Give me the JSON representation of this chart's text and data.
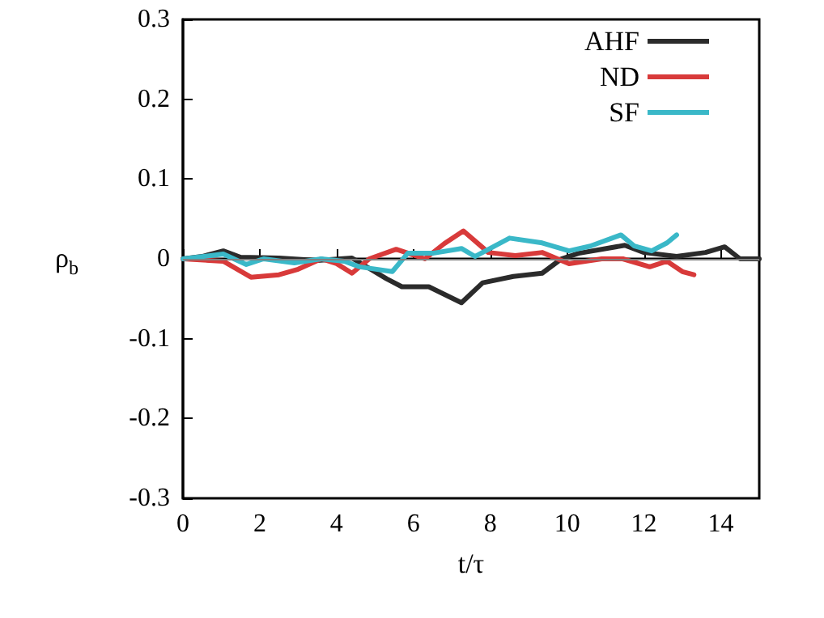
{
  "chart_data": {
    "type": "line",
    "xlabel": "t/τ",
    "ylabel": "ρ$_{b}$",
    "xlim": [
      0,
      15
    ],
    "xticks": [
      0,
      2,
      4,
      6,
      8,
      10,
      12,
      14
    ],
    "ylim": [
      -0.3,
      0.3
    ],
    "yticks": [
      -0.3,
      -0.2,
      -0.1,
      0,
      0.1,
      0.2,
      0.3
    ],
    "grid": false,
    "legend": "top right",
    "marker": "none",
    "line_style": "solid",
    "ref_lines": [
      {
        "axis": "y",
        "value": 0,
        "color": "#808080"
      }
    ],
    "series": [
      {
        "name": "AHF",
        "color": "#2b2b2b",
        "x": [
          0,
          0.5,
          1.05,
          1.5,
          2.5,
          3.5,
          4.4,
          5.3,
          5.7,
          6.4,
          7.25,
          7.8,
          8.6,
          9.35,
          9.85,
          10.3,
          11.5,
          12,
          12.85,
          13.6,
          14.1,
          14.5,
          15
        ],
        "values": [
          0,
          0.003,
          0.01,
          0.002,
          0.001,
          -0.002,
          0.001,
          -0.025,
          -0.035,
          -0.035,
          -0.055,
          -0.03,
          -0.022,
          -0.018,
          0,
          0.007,
          0.017,
          0.008,
          0.003,
          0.008,
          0.015,
          0,
          0
        ]
      },
      {
        "name": "ND",
        "color": "#d83a3a",
        "x": [
          0,
          1.05,
          1.77,
          2.5,
          3.0,
          3.6,
          4.0,
          4.4,
          4.85,
          5.55,
          6.3,
          6.8,
          7.3,
          7.95,
          8.65,
          9.35,
          10.05,
          10.9,
          11.45,
          12.15,
          12.6,
          13.0,
          13.3
        ],
        "values": [
          0,
          -0.003,
          -0.023,
          -0.02,
          -0.013,
          0,
          -0.006,
          -0.018,
          0,
          0.012,
          0,
          0.019,
          0.035,
          0.008,
          0.004,
          0.008,
          -0.006,
          0,
          0,
          -0.01,
          -0.003,
          -0.016,
          -0.02
        ]
      },
      {
        "name": "SF",
        "color": "#3ab8c8",
        "x": [
          0,
          1.05,
          1.65,
          2.1,
          2.9,
          3.6,
          4.2,
          4.6,
          5.45,
          5.85,
          6.5,
          7.25,
          7.6,
          8.5,
          9.35,
          10.05,
          10.6,
          11.4,
          11.75,
          12.2,
          12.6,
          12.85
        ],
        "values": [
          0,
          0.006,
          -0.007,
          0,
          -0.005,
          0,
          -0.003,
          -0.01,
          -0.016,
          0.007,
          0.007,
          0.013,
          0.003,
          0.026,
          0.02,
          0.01,
          0.016,
          0.03,
          0.016,
          0.01,
          0.02,
          0.03
        ]
      }
    ]
  }
}
